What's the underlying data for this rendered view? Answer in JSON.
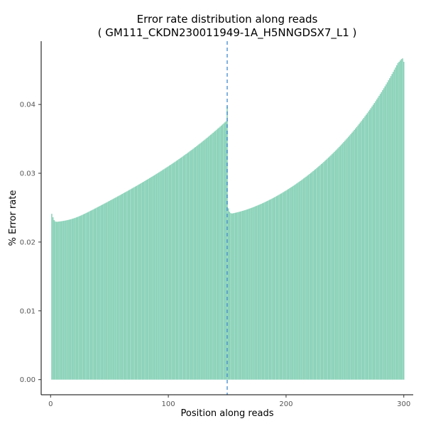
{
  "chart_data": {
    "type": "bar",
    "title": "Error rate distribution along reads",
    "subtitle": "( GM111_CKDN230011949-1A_H5NNGDSX7_L1 )",
    "xlabel": "Position along reads",
    "ylabel": "% Error rate",
    "xlim": [
      -8,
      308
    ],
    "ylim": [
      -0.0022,
      0.0492
    ],
    "x_ticks": [
      0,
      100,
      200,
      300
    ],
    "y_ticks": [
      0.0,
      0.01,
      0.02,
      0.03,
      0.04
    ],
    "x_tick_labels": [
      "0",
      "100",
      "200",
      "300"
    ],
    "y_tick_labels": [
      "0.00",
      "0.01",
      "0.02",
      "0.03",
      "0.04"
    ],
    "bar_color": "#87D1B7",
    "vline": {
      "x": 150,
      "color": "#2E7FC7",
      "style": "dashed"
    },
    "grid": false,
    "legend": "none",
    "series": [
      {
        "x_start": 1,
        "values": [
          0.0241,
          0.0236,
          0.0232,
          0.023,
          0.02295,
          0.02295,
          0.02298,
          0.023,
          0.02302,
          0.02305,
          0.02308,
          0.02311,
          0.02314,
          0.02318,
          0.02322,
          0.02326,
          0.02331,
          0.02336,
          0.02341,
          0.02347,
          0.02353,
          0.02359,
          0.02366,
          0.02373,
          0.0238,
          0.02388,
          0.02396,
          0.02404,
          0.02412,
          0.0242,
          0.02429,
          0.02437,
          0.02446,
          0.02455,
          0.02463,
          0.02472,
          0.02481,
          0.0249,
          0.02499,
          0.02508,
          0.02517,
          0.02526,
          0.02535,
          0.02544,
          0.02553,
          0.02562,
          0.02571,
          0.0258,
          0.0259,
          0.02599,
          0.02608,
          0.02617,
          0.02626,
          0.02636,
          0.02645,
          0.02654,
          0.02664,
          0.02673,
          0.02682,
          0.02692,
          0.02701,
          0.02711,
          0.0272,
          0.0273,
          0.02739,
          0.02749,
          0.02759,
          0.02768,
          0.02778,
          0.02788,
          0.02798,
          0.02807,
          0.02817,
          0.02827,
          0.02837,
          0.02847,
          0.02857,
          0.02867,
          0.02877,
          0.02887,
          0.02898,
          0.02908,
          0.02918,
          0.02929,
          0.02939,
          0.02949,
          0.0296,
          0.0297,
          0.02981,
          0.02992,
          0.03002,
          0.03013,
          0.03024,
          0.03035,
          0.03046,
          0.03057,
          0.03068,
          0.03079,
          0.0309,
          0.03101,
          0.03113,
          0.03124,
          0.03136,
          0.03147,
          0.03159,
          0.0317,
          0.03182,
          0.03194,
          0.03206,
          0.03218,
          0.0323,
          0.03242,
          0.03254,
          0.03267,
          0.03279,
          0.03291,
          0.03304,
          0.03317,
          0.03329,
          0.03342,
          0.03355,
          0.03368,
          0.03381,
          0.03394,
          0.03408,
          0.03421,
          0.03434,
          0.03448,
          0.03462,
          0.03475,
          0.03489,
          0.03503,
          0.03517,
          0.03531,
          0.03546,
          0.0356,
          0.03574,
          0.03589,
          0.03604,
          0.03618,
          0.03633,
          0.03648,
          0.03663,
          0.03678,
          0.03693,
          0.03709,
          0.03724,
          0.0374,
          0.03756,
          0.03972,
          0.0249,
          0.0244,
          0.0242,
          0.02415,
          0.02418,
          0.02422,
          0.02426,
          0.0243,
          0.02434,
          0.02438,
          0.02443,
          0.02448,
          0.02453,
          0.02458,
          0.02463,
          0.02469,
          0.02475,
          0.02481,
          0.02487,
          0.02493,
          0.02499,
          0.02506,
          0.02513,
          0.0252,
          0.02527,
          0.02534,
          0.02541,
          0.02549,
          0.02556,
          0.02564,
          0.02572,
          0.0258,
          0.02588,
          0.02597,
          0.02605,
          0.02614,
          0.02622,
          0.02631,
          0.0264,
          0.0265,
          0.02659,
          0.02668,
          0.02678,
          0.02688,
          0.02698,
          0.02708,
          0.02718,
          0.02728,
          0.02739,
          0.02749,
          0.0276,
          0.02771,
          0.02782,
          0.02793,
          0.02804,
          0.02816,
          0.02827,
          0.02839,
          0.02851,
          0.02863,
          0.02875,
          0.02887,
          0.029,
          0.02912,
          0.02925,
          0.02938,
          0.02951,
          0.02964,
          0.02977,
          0.02991,
          0.03004,
          0.03018,
          0.03032,
          0.03046,
          0.0306,
          0.03075,
          0.03089,
          0.03104,
          0.03119,
          0.03134,
          0.03149,
          0.03164,
          0.0318,
          0.03196,
          0.03212,
          0.03228,
          0.03244,
          0.0326,
          0.03277,
          0.03294,
          0.03311,
          0.03328,
          0.03345,
          0.03363,
          0.03381,
          0.03399,
          0.03417,
          0.03435,
          0.03454,
          0.03473,
          0.03492,
          0.03511,
          0.0353,
          0.0355,
          0.0357,
          0.0359,
          0.0361,
          0.03631,
          0.03652,
          0.03673,
          0.03694,
          0.03716,
          0.03738,
          0.0376,
          0.03782,
          0.03805,
          0.03828,
          0.03851,
          0.03874,
          0.03898,
          0.03922,
          0.03946,
          0.03971,
          0.03996,
          0.04021,
          0.04047,
          0.04073,
          0.04099,
          0.04126,
          0.04153,
          0.0418,
          0.04208,
          0.04236,
          0.04264,
          0.04293,
          0.04322,
          0.04352,
          0.04382,
          0.04412,
          0.04443,
          0.04474,
          0.04506,
          0.04538,
          0.0457,
          0.04603,
          0.0462,
          0.0464,
          0.0466,
          0.0467,
          0.0462
        ]
      }
    ]
  }
}
